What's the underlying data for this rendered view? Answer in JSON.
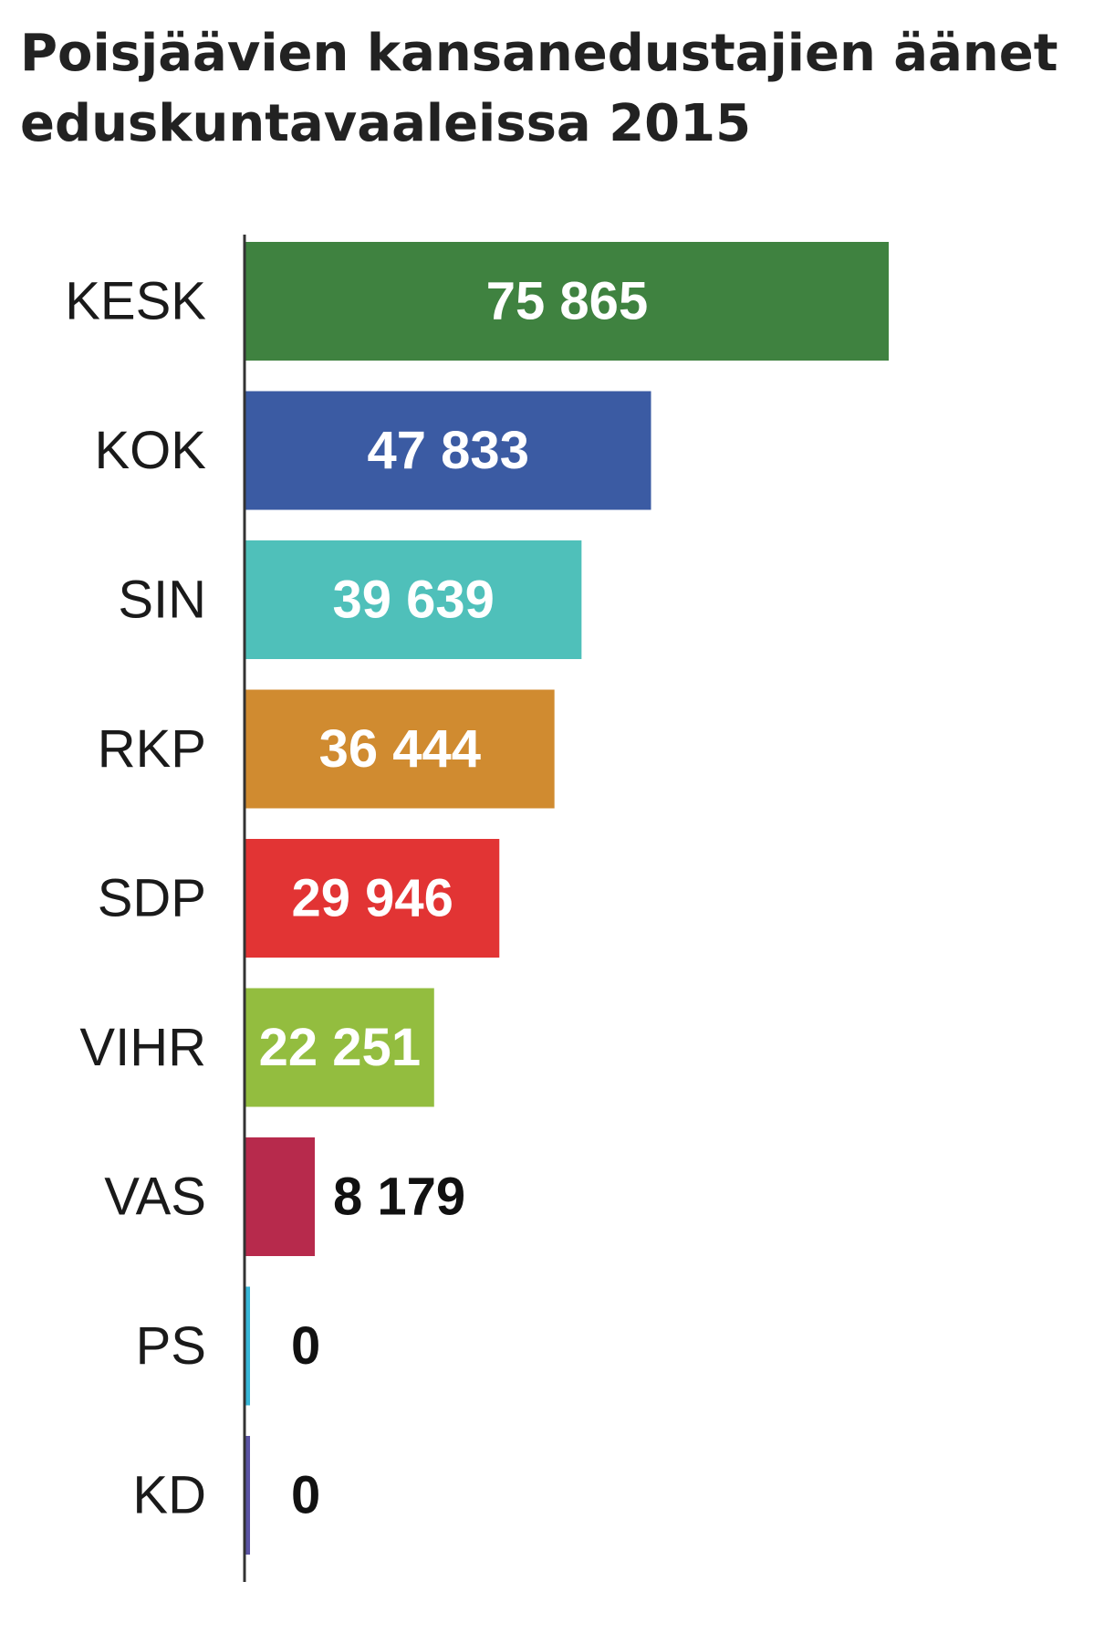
{
  "chart_data": {
    "type": "bar",
    "orientation": "horizontal",
    "title": "Poisjäävien kansanedustajien äänet eduskuntavaaleissa 2015",
    "categories": [
      "KESK",
      "KOK",
      "SIN",
      "RKP",
      "SDP",
      "VIHR",
      "VAS",
      "PS",
      "KD"
    ],
    "values": [
      75865,
      47833,
      39639,
      36444,
      29946,
      22251,
      8179,
      0,
      0
    ],
    "value_labels": [
      "75 865",
      "47 833",
      "39 639",
      "36 444",
      "29 946",
      "22 251",
      "8 179",
      "0",
      "0"
    ],
    "colors": [
      "#3f8240",
      "#3b5ba3",
      "#4fc0ba",
      "#d08b30",
      "#e23434",
      "#93bd3f",
      "#b72a4c",
      "#37b6d7",
      "#5a53a3"
    ],
    "xlim": [
      0,
      75865
    ],
    "grid": false,
    "legend": "none"
  }
}
